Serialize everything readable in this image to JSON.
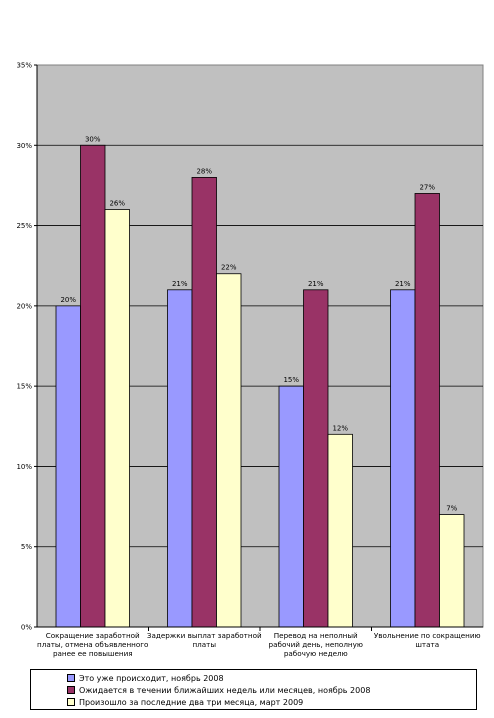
{
  "chart_data": {
    "type": "bar",
    "categories": [
      [
        "Сокращение заработной",
        "платы, отмена объявленного",
        "ранее ее повышения"
      ],
      [
        "Задержки выплат заработной",
        "платы"
      ],
      [
        "Перевод на неполный",
        "рабочий день, неполную",
        "рабочую неделю"
      ],
      [
        "Увольнение по сокращению",
        "штата"
      ]
    ],
    "series": [
      {
        "name": "Это уже происходит, ноябрь 2008",
        "values": [
          20,
          21,
          15,
          21
        ],
        "color": "#9999FF"
      },
      {
        "name": "Ожидается в течении ближайших недель или месяцев, ноябрь 2008",
        "values": [
          30,
          28,
          21,
          27
        ],
        "color": "#993366"
      },
      {
        "name": "Произошло за последние два три месяца, март 2009",
        "values": [
          26,
          22,
          12,
          7
        ],
        "color": "#FFFFCC"
      }
    ],
    "data_labels": [
      [
        "20%",
        "21%",
        "15%",
        "21%"
      ],
      [
        "30%",
        "28%",
        "21%",
        "27%"
      ],
      [
        "26%",
        "22%",
        "12%",
        "7%"
      ]
    ],
    "ylim": [
      0,
      35
    ],
    "yticks": [
      "0%",
      "5%",
      "10%",
      "15%",
      "20%",
      "25%",
      "30%",
      "35%"
    ],
    "plot_background": "#C0C0C0",
    "grid": true,
    "legend_position": "bottom"
  }
}
